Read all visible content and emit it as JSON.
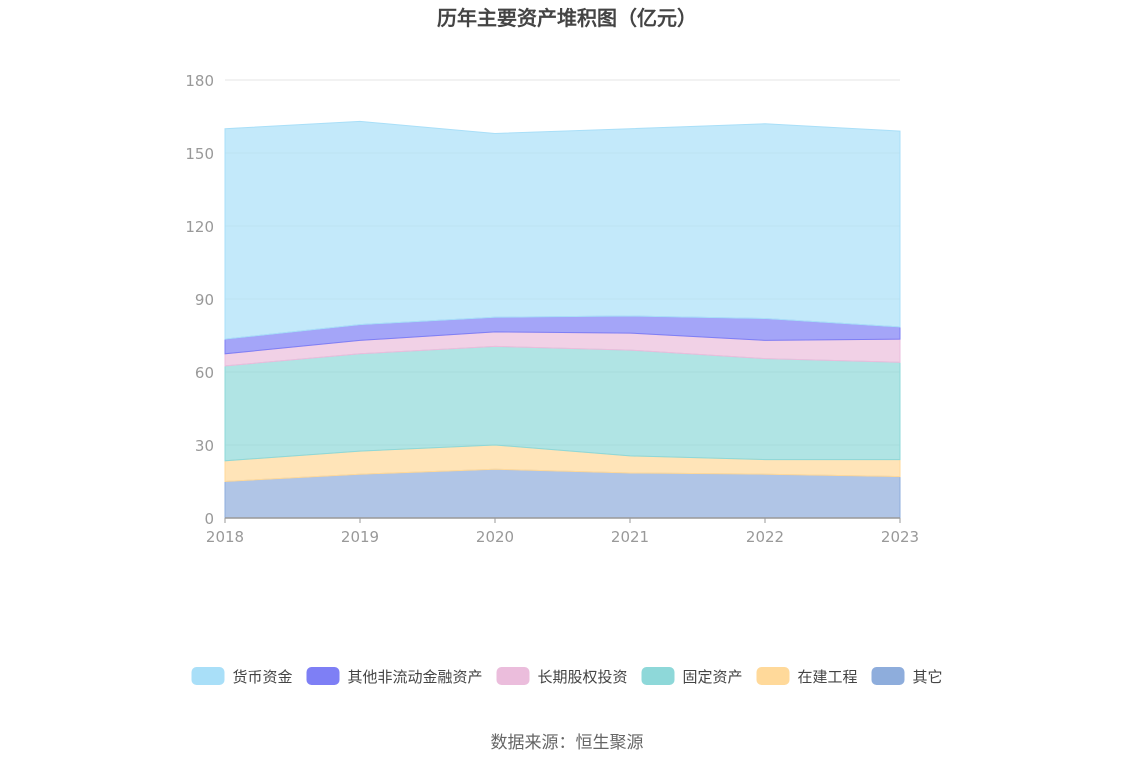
{
  "chart_data": {
    "type": "area",
    "stacked": true,
    "title": "历年主要资产堆积图（亿元）",
    "source": "数据来源：恒生聚源",
    "x": [
      "2018",
      "2019",
      "2020",
      "2021",
      "2022",
      "2023"
    ],
    "ylim": [
      0,
      180
    ],
    "yticks": [
      "0",
      "30",
      "60",
      "90",
      "120",
      "150",
      "180"
    ],
    "grid": true,
    "legend_position": "bottom",
    "series": [
      {
        "name": "其它",
        "color": "#8EADDC",
        "values": [
          15,
          18,
          20,
          18.5,
          18,
          17
        ]
      },
      {
        "name": "在建工程",
        "color": "#FFD99A",
        "values": [
          8.5,
          9.5,
          10,
          7,
          6,
          7
        ]
      },
      {
        "name": "固定资产",
        "color": "#8ED8D9",
        "values": [
          39,
          40,
          40.5,
          43.5,
          41.5,
          40
        ]
      },
      {
        "name": "长期股权投资",
        "color": "#EBBDDC",
        "values": [
          5,
          5.5,
          6,
          7,
          7.5,
          9.5
        ]
      },
      {
        "name": "其他非流动金融资产",
        "color": "#7E7FF5",
        "values": [
          6,
          6.5,
          6,
          7,
          9,
          5
        ]
      },
      {
        "name": "货币资金",
        "color": "#A9DFF8",
        "values": [
          86.5,
          83.5,
          75.5,
          77,
          80,
          80.5
        ]
      }
    ],
    "legend_order": [
      "货币资金",
      "其他非流动金融资产",
      "长期股权投资",
      "固定资产",
      "在建工程",
      "其它"
    ]
  }
}
